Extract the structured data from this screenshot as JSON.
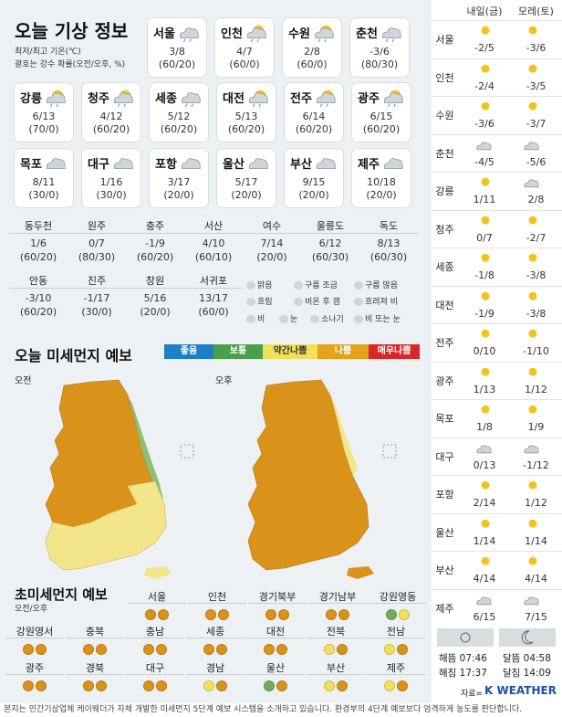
{
  "title": "오늘 기상 정보",
  "notes": [
    "최저/최고 기온(℃)",
    "괄호는 강수 확률(오전/오후, %)"
  ],
  "top_cards": [
    {
      "name": "서울",
      "temp": "3/8",
      "rain": "(60/20)",
      "icon": "rain-cloud-icon"
    },
    {
      "name": "인천",
      "temp": "4/7",
      "rain": "(60/0)",
      "icon": "rain-then-sunny-icon"
    },
    {
      "name": "수원",
      "temp": "2/8",
      "rain": "(60/0)",
      "icon": "rain-then-sunny-icon"
    },
    {
      "name": "춘천",
      "temp": "-3/6",
      "rain": "(80/30)",
      "icon": "rain-cloud-icon"
    },
    {
      "name": "강릉",
      "temp": "6/13",
      "rain": "(70/0)",
      "icon": "rain-then-sunny-icon"
    },
    {
      "name": "청주",
      "temp": "4/12",
      "rain": "(60/20)",
      "icon": "rain-then-sunny-icon"
    },
    {
      "name": "세종",
      "temp": "5/12",
      "rain": "(60/20)",
      "icon": "rain-cloud-icon"
    },
    {
      "name": "대전",
      "temp": "5/13",
      "rain": "(60/20)",
      "icon": "rain-then-sunny-icon"
    },
    {
      "name": "전주",
      "temp": "6/14",
      "rain": "(60/20)",
      "icon": "rain-then-sunny-icon"
    },
    {
      "name": "광주",
      "temp": "6/15",
      "rain": "(60/20)",
      "icon": "rain-then-sunny-icon"
    },
    {
      "name": "목포",
      "temp": "8/11",
      "rain": "(30/0)",
      "icon": "cloudy-icon"
    },
    {
      "name": "대구",
      "temp": "1/16",
      "rain": "(30/0)",
      "icon": "cloudy-icon"
    },
    {
      "name": "포항",
      "temp": "3/17",
      "rain": "(20/0)",
      "icon": "cloudy-icon"
    },
    {
      "name": "울산",
      "temp": "5/17",
      "rain": "(20/0)",
      "icon": "cloudy-icon"
    },
    {
      "name": "부산",
      "temp": "9/15",
      "rain": "(20/0)",
      "icon": "cloudy-icon"
    },
    {
      "name": "제주",
      "temp": "10/18",
      "rain": "(20/0)",
      "icon": "cloudy-icon"
    }
  ],
  "small_cities": [
    {
      "name": "동두천",
      "temp": "1/6",
      "rain": "(60/20)"
    },
    {
      "name": "원주",
      "temp": "0/7",
      "rain": "(80/30)"
    },
    {
      "name": "충주",
      "temp": "-1/9",
      "rain": "(60/20)"
    },
    {
      "name": "서산",
      "temp": "4/10",
      "rain": "(60/10)"
    },
    {
      "name": "여수",
      "temp": "7/14",
      "rain": "(20/0)"
    },
    {
      "name": "울릉도",
      "temp": "6/12",
      "rain": "(60/30)"
    },
    {
      "name": "독도",
      "temp": "8/13",
      "rain": "(60/30)"
    },
    {
      "name": "안동",
      "temp": "-3/10",
      "rain": "(60/20)"
    },
    {
      "name": "진주",
      "temp": "-1/17",
      "rain": "(30/0)"
    },
    {
      "name": "창원",
      "temp": "5/16",
      "rain": "(20/0)"
    },
    {
      "name": "서귀포",
      "temp": "13/17",
      "rain": "(60/0)"
    }
  ],
  "legend": [
    "맑음",
    "구름 조금",
    "구름 많음",
    "흐림",
    "비온 후 갬",
    "흐려져 비",
    "비",
    "눈",
    "소나기",
    "비 또는 눈"
  ],
  "pm_title": "오늘 미세먼지 예보",
  "pm_levels": [
    {
      "label": "좋음",
      "color": "#1f7fc4"
    },
    {
      "label": "보통",
      "color": "#4aa04a"
    },
    {
      "label": "약간나쁨",
      "color": "#f3e05a"
    },
    {
      "label": "나쁨",
      "color": "#e3a21a"
    },
    {
      "label": "매우나쁨",
      "color": "#d9262a"
    }
  ],
  "am_label": "오전",
  "pm_label": "오후",
  "fine_title": "초미세먼지 예보",
  "fine_sub": "오전/오후",
  "fine_cities": [
    {
      "name": "서울",
      "dots": [
        "#d9921a",
        "#d9921a"
      ]
    },
    {
      "name": "인천",
      "dots": [
        "#d9921a",
        "#d9921a"
      ]
    },
    {
      "name": "경기북부",
      "dots": [
        "#d9921a",
        "#d9921a"
      ]
    },
    {
      "name": "경기남부",
      "dots": [
        "#d9921a",
        "#d9921a"
      ]
    },
    {
      "name": "강원영동",
      "dots": [
        "#6fae5c",
        "#f3e05a"
      ]
    },
    {
      "name": "강원영서",
      "dots": [
        "#d9921a",
        "#d9921a"
      ]
    },
    {
      "name": "충북",
      "dots": [
        "#d9921a",
        "#d9921a"
      ]
    },
    {
      "name": "충남",
      "dots": [
        "#d9921a",
        "#d9921a"
      ]
    },
    {
      "name": "세종",
      "dots": [
        "#d9921a",
        "#d9921a"
      ]
    },
    {
      "name": "대전",
      "dots": [
        "#d9921a",
        "#d9921a"
      ]
    },
    {
      "name": "전북",
      "dots": [
        "#f3e05a",
        "#d9921a"
      ]
    },
    {
      "name": "전남",
      "dots": [
        "#f3e05a",
        "#d9921a"
      ]
    },
    {
      "name": "광주",
      "dots": [
        "#d9921a",
        "#d9921a"
      ]
    },
    {
      "name": "경북",
      "dots": [
        "#d9921a",
        "#d9921a"
      ]
    },
    {
      "name": "대구",
      "dots": [
        "#d9921a",
        "#d9921a"
      ]
    },
    {
      "name": "경남",
      "dots": [
        "#f3e05a",
        "#d9921a"
      ]
    },
    {
      "name": "울산",
      "dots": [
        "#6fae5c",
        "#d9921a"
      ]
    },
    {
      "name": "부산",
      "dots": [
        "#f3e05a",
        "#d9921a"
      ]
    },
    {
      "name": "제주",
      "dots": [
        "#f3e05a",
        "#d9921a"
      ]
    }
  ],
  "right_headers": [
    "내일(금)",
    "모레(토)"
  ],
  "forecast": [
    {
      "name": "서울",
      "d1": "-2/5",
      "d2": "-3/6",
      "i1": "sun-icon",
      "i2": "sun-icon"
    },
    {
      "name": "인천",
      "d1": "-2/4",
      "d2": "-3/5",
      "i1": "sun-icon",
      "i2": "sun-icon"
    },
    {
      "name": "수원",
      "d1": "-3/6",
      "d2": "-3/7",
      "i1": "sun-icon",
      "i2": "sun-icon"
    },
    {
      "name": "춘천",
      "d1": "-4/5",
      "d2": "-5/6",
      "i1": "cloud-icon",
      "i2": "cloud-icon"
    },
    {
      "name": "강릉",
      "d1": "1/11",
      "d2": "2/8",
      "i1": "sun-icon",
      "i2": "cloud-icon"
    },
    {
      "name": "청주",
      "d1": "0/7",
      "d2": "-2/7",
      "i1": "sun-icon",
      "i2": "sun-icon"
    },
    {
      "name": "세종",
      "d1": "-1/8",
      "d2": "-3/8",
      "i1": "sun-icon",
      "i2": "sun-icon"
    },
    {
      "name": "대전",
      "d1": "-1/9",
      "d2": "-3/8",
      "i1": "sun-icon",
      "i2": "sun-icon"
    },
    {
      "name": "전주",
      "d1": "0/10",
      "d2": "-1/10",
      "i1": "sun-icon",
      "i2": "sun-icon"
    },
    {
      "name": "광주",
      "d1": "1/13",
      "d2": "1/12",
      "i1": "sun-icon",
      "i2": "sun-icon"
    },
    {
      "name": "목포",
      "d1": "1/8",
      "d2": "1/9",
      "i1": "sun-icon",
      "i2": "sun-icon"
    },
    {
      "name": "대구",
      "d1": "0/13",
      "d2": "-1/12",
      "i1": "cloud-icon",
      "i2": "cloud-icon"
    },
    {
      "name": "포항",
      "d1": "2/14",
      "d2": "1/12",
      "i1": "sun-icon",
      "i2": "sun-icon"
    },
    {
      "name": "울산",
      "d1": "1/14",
      "d2": "1/14",
      "i1": "sun-icon",
      "i2": "sun-icon"
    },
    {
      "name": "부산",
      "d1": "4/14",
      "d2": "4/14",
      "i1": "sun-icon",
      "i2": "sun-icon"
    },
    {
      "name": "제주",
      "d1": "6/15",
      "d2": "7/15",
      "i1": "cloud-icon",
      "i2": "cloud-icon"
    }
  ],
  "sun": {
    "rise": "해뜸 07:46",
    "set": "해짐 17:37",
    "moonrise": "달뜸 04:58",
    "moonset": "달짐 14:09"
  },
  "source": "자료=",
  "brand": "K WEATHER",
  "footer": "본지는 민간기상업체 케이웨더가 자체 개발한 미세먼지 5단계 예보 시스템을 소개하고 있습니다. 환경부의 4단계 예보보다 엄격하게 농도를 판단합니다."
}
